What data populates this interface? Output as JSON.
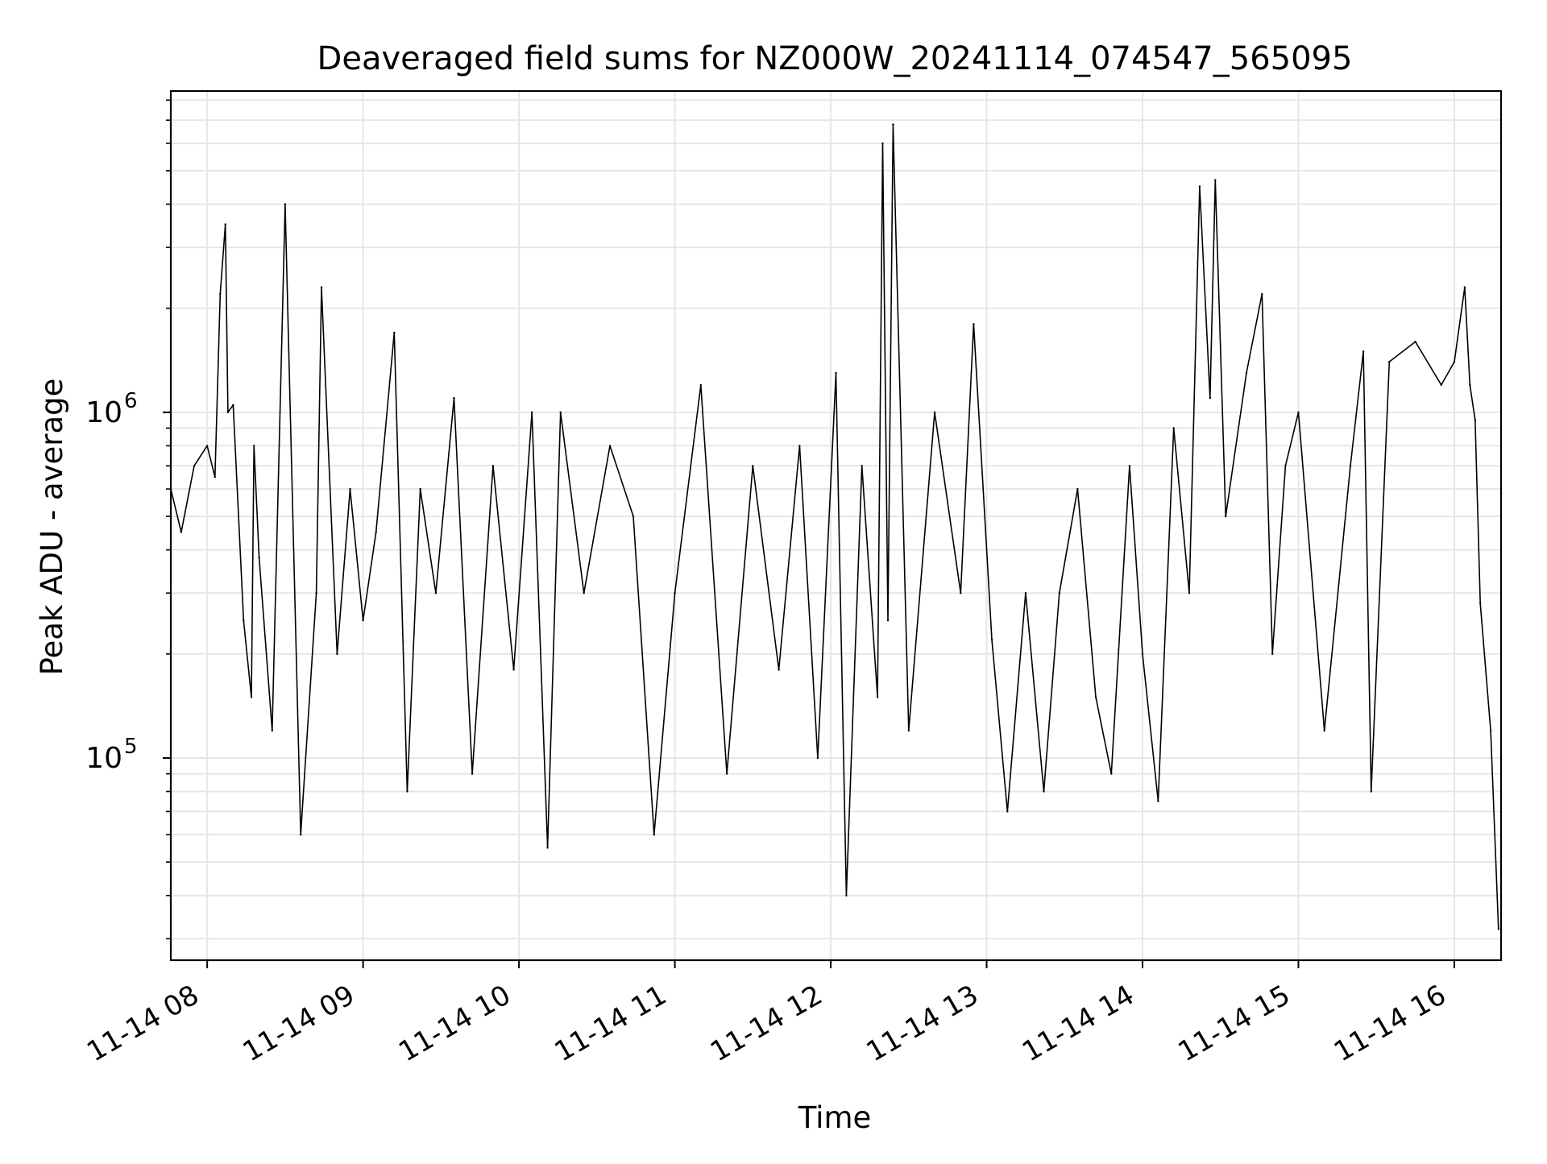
{
  "chart_data": {
    "type": "line",
    "title": "Deaveraged field sums for NZ000W_20241114_074547_565095",
    "xlabel": "Time",
    "ylabel": "Peak ADU - average",
    "yscale": "log",
    "grid": "on (major and minor)",
    "xlim": [
      "2024-11-14T07:46:00",
      "2024-11-14T16:18:00"
    ],
    "ylim": [
      26000,
      8500000
    ],
    "x_ticks": [
      {
        "value": "2024-11-14T08:00:00",
        "label": "11-14 08"
      },
      {
        "value": "2024-11-14T09:00:00",
        "label": "11-14 09"
      },
      {
        "value": "2024-11-14T10:00:00",
        "label": "11-14 10"
      },
      {
        "value": "2024-11-14T11:00:00",
        "label": "11-14 11"
      },
      {
        "value": "2024-11-14T12:00:00",
        "label": "11-14 12"
      },
      {
        "value": "2024-11-14T13:00:00",
        "label": "11-14 13"
      },
      {
        "value": "2024-11-14T14:00:00",
        "label": "11-14 14"
      },
      {
        "value": "2024-11-14T15:00:00",
        "label": "11-14 15"
      },
      {
        "value": "2024-11-14T16:00:00",
        "label": "11-14 16"
      }
    ],
    "y_ticks": [
      {
        "value": 100000,
        "base": "10",
        "exp": "5"
      },
      {
        "value": 1000000,
        "base": "10",
        "exp": "6"
      }
    ],
    "series_color": "#000000",
    "series": [
      {
        "x": [
          "2024-11-14T07:46:00",
          "2024-11-14T07:50:00",
          "2024-11-14T07:55:00",
          "2024-11-14T08:00:00",
          "2024-11-14T08:03:00",
          "2024-11-14T08:05:00",
          "2024-11-14T08:07:00",
          "2024-11-14T08:08:00",
          "2024-11-14T08:10:00",
          "2024-11-14T08:14:00",
          "2024-11-14T08:17:00",
          "2024-11-14T08:18:00",
          "2024-11-14T08:20:00",
          "2024-11-14T08:25:00",
          "2024-11-14T08:30:00",
          "2024-11-14T08:36:00",
          "2024-11-14T08:42:00",
          "2024-11-14T08:44:00",
          "2024-11-14T08:50:00",
          "2024-11-14T08:55:00",
          "2024-11-14T09:00:00",
          "2024-11-14T09:05:00",
          "2024-11-14T09:12:00",
          "2024-11-14T09:17:00",
          "2024-11-14T09:22:00",
          "2024-11-14T09:28:00",
          "2024-11-14T09:35:00",
          "2024-11-14T09:42:00",
          "2024-11-14T09:50:00",
          "2024-11-14T09:58:00",
          "2024-11-14T10:05:00",
          "2024-11-14T10:11:00",
          "2024-11-14T10:16:00",
          "2024-11-14T10:25:00",
          "2024-11-14T10:35:00",
          "2024-11-14T10:44:00",
          "2024-11-14T10:52:00",
          "2024-11-14T11:00:00",
          "2024-11-14T11:10:00",
          "2024-11-14T11:20:00",
          "2024-11-14T11:30:00",
          "2024-11-14T11:40:00",
          "2024-11-14T11:48:00",
          "2024-11-14T11:55:00",
          "2024-11-14T12:02:00",
          "2024-11-14T12:06:00",
          "2024-11-14T12:12:00",
          "2024-11-14T12:18:00",
          "2024-11-14T12:20:00",
          "2024-11-14T12:22:00",
          "2024-11-14T12:24:00",
          "2024-11-14T12:30:00",
          "2024-11-14T12:40:00",
          "2024-11-14T12:50:00",
          "2024-11-14T12:55:00",
          "2024-11-14T13:02:00",
          "2024-11-14T13:08:00",
          "2024-11-14T13:15:00",
          "2024-11-14T13:22:00",
          "2024-11-14T13:28:00",
          "2024-11-14T13:35:00",
          "2024-11-14T13:42:00",
          "2024-11-14T13:48:00",
          "2024-11-14T13:55:00",
          "2024-11-14T14:00:00",
          "2024-11-14T14:06:00",
          "2024-11-14T14:12:00",
          "2024-11-14T14:18:00",
          "2024-11-14T14:22:00",
          "2024-11-14T14:26:00",
          "2024-11-14T14:28:00",
          "2024-11-14T14:32:00",
          "2024-11-14T14:40:00",
          "2024-11-14T14:46:00",
          "2024-11-14T14:50:00",
          "2024-11-14T14:55:00",
          "2024-11-14T15:00:00",
          "2024-11-14T15:10:00",
          "2024-11-14T15:20:00",
          "2024-11-14T15:25:00",
          "2024-11-14T15:28:00",
          "2024-11-14T15:35:00",
          "2024-11-14T15:45:00",
          "2024-11-14T15:55:00",
          "2024-11-14T16:00:00",
          "2024-11-14T16:04:00",
          "2024-11-14T16:06:00",
          "2024-11-14T16:08:00",
          "2024-11-14T16:10:00",
          "2024-11-14T16:14:00",
          "2024-11-14T16:17:00"
        ],
        "y": [
          600000,
          450000,
          700000,
          800000,
          650000,
          2200000,
          3500000,
          1000000,
          1050000,
          250000,
          150000,
          800000,
          380000,
          120000,
          4000000,
          60000,
          300000,
          2300000,
          200000,
          600000,
          250000,
          450000,
          1700000,
          80000,
          600000,
          300000,
          1100000,
          90000,
          700000,
          180000,
          1000000,
          55000,
          1000000,
          300000,
          800000,
          500000,
          60000,
          300000,
          1200000,
          90000,
          700000,
          180000,
          800000,
          100000,
          1300000,
          40000,
          700000,
          150000,
          6000000,
          250000,
          6800000,
          120000,
          1000000,
          300000,
          1800000,
          220000,
          70000,
          300000,
          80000,
          300000,
          600000,
          150000,
          90000,
          700000,
          200000,
          75000,
          900000,
          300000,
          4500000,
          1100000,
          4700000,
          500000,
          1300000,
          2200000,
          200000,
          700000,
          1000000,
          120000,
          700000,
          1500000,
          80000,
          1400000,
          1600000,
          1200000,
          1400000,
          2300000,
          1200000,
          950000,
          280000,
          120000,
          32000
        ]
      }
    ]
  }
}
